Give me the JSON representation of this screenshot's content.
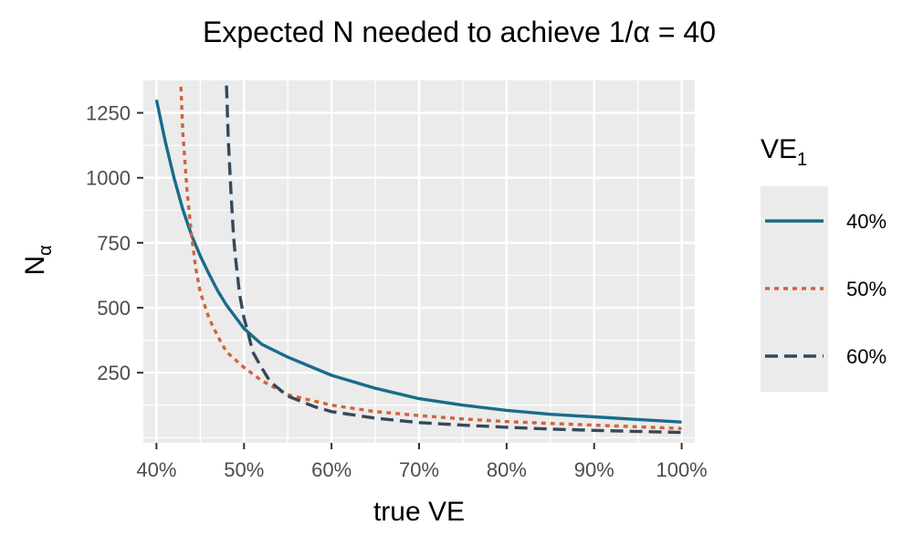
{
  "chart_data": {
    "type": "line",
    "title": "Expected N needed to achieve 1/α = 40",
    "xlabel": "true VE",
    "ylabel": "N",
    "ylabel_subscript": "α",
    "xlim": [
      0.385,
      1.015
    ],
    "ylim": [
      -20,
      1375
    ],
    "x_ticks": [
      0.4,
      0.5,
      0.6,
      0.7,
      0.8,
      0.9,
      1.0
    ],
    "x_tick_labels": [
      "40%",
      "50%",
      "60%",
      "70%",
      "80%",
      "90%",
      "100%"
    ],
    "y_ticks": [
      250,
      500,
      750,
      1000,
      1250
    ],
    "y_tick_labels": [
      "250",
      "500",
      "750",
      "1000",
      "1250"
    ],
    "grid": true,
    "legend": {
      "title": "VE",
      "title_subscript": "1",
      "placement": "right"
    },
    "series": [
      {
        "name": "40%",
        "color": "#1a6b8a",
        "dash": "solid",
        "points": [
          [
            0.4,
            1300
          ],
          [
            0.41,
            1140
          ],
          [
            0.42,
            1000
          ],
          [
            0.43,
            880
          ],
          [
            0.44,
            780
          ],
          [
            0.45,
            700
          ],
          [
            0.46,
            630
          ],
          [
            0.47,
            565
          ],
          [
            0.48,
            510
          ],
          [
            0.49,
            465
          ],
          [
            0.5,
            420
          ],
          [
            0.52,
            360
          ],
          [
            0.55,
            310
          ],
          [
            0.6,
            240
          ],
          [
            0.65,
            190
          ],
          [
            0.7,
            150
          ],
          [
            0.75,
            125
          ],
          [
            0.8,
            105
          ],
          [
            0.85,
            90
          ],
          [
            0.9,
            80
          ],
          [
            0.95,
            70
          ],
          [
            1.0,
            60
          ]
        ]
      },
      {
        "name": "50%",
        "color": "#d0643a",
        "dash": "dotted",
        "points": [
          [
            0.428,
            1350
          ],
          [
            0.43,
            1180
          ],
          [
            0.435,
            950
          ],
          [
            0.44,
            780
          ],
          [
            0.445,
            650
          ],
          [
            0.45,
            560
          ],
          [
            0.46,
            460
          ],
          [
            0.47,
            390
          ],
          [
            0.48,
            330
          ],
          [
            0.5,
            270
          ],
          [
            0.52,
            220
          ],
          [
            0.55,
            165
          ],
          [
            0.6,
            125
          ],
          [
            0.65,
            100
          ],
          [
            0.7,
            85
          ],
          [
            0.75,
            72
          ],
          [
            0.8,
            62
          ],
          [
            0.85,
            55
          ],
          [
            0.9,
            48
          ],
          [
            0.95,
            42
          ],
          [
            1.0,
            35
          ]
        ]
      },
      {
        "name": "60%",
        "color": "#34495a",
        "dash": "dashed",
        "points": [
          [
            0.48,
            1355
          ],
          [
            0.482,
            1150
          ],
          [
            0.485,
            950
          ],
          [
            0.488,
            780
          ],
          [
            0.49,
            700
          ],
          [
            0.495,
            550
          ],
          [
            0.5,
            460
          ],
          [
            0.505,
            400
          ],
          [
            0.51,
            330
          ],
          [
            0.52,
            270
          ],
          [
            0.53,
            215
          ],
          [
            0.55,
            160
          ],
          [
            0.58,
            120
          ],
          [
            0.6,
            100
          ],
          [
            0.65,
            75
          ],
          [
            0.7,
            58
          ],
          [
            0.75,
            48
          ],
          [
            0.8,
            40
          ],
          [
            0.85,
            33
          ],
          [
            0.9,
            28
          ],
          [
            0.95,
            24
          ],
          [
            1.0,
            20
          ]
        ]
      }
    ]
  }
}
